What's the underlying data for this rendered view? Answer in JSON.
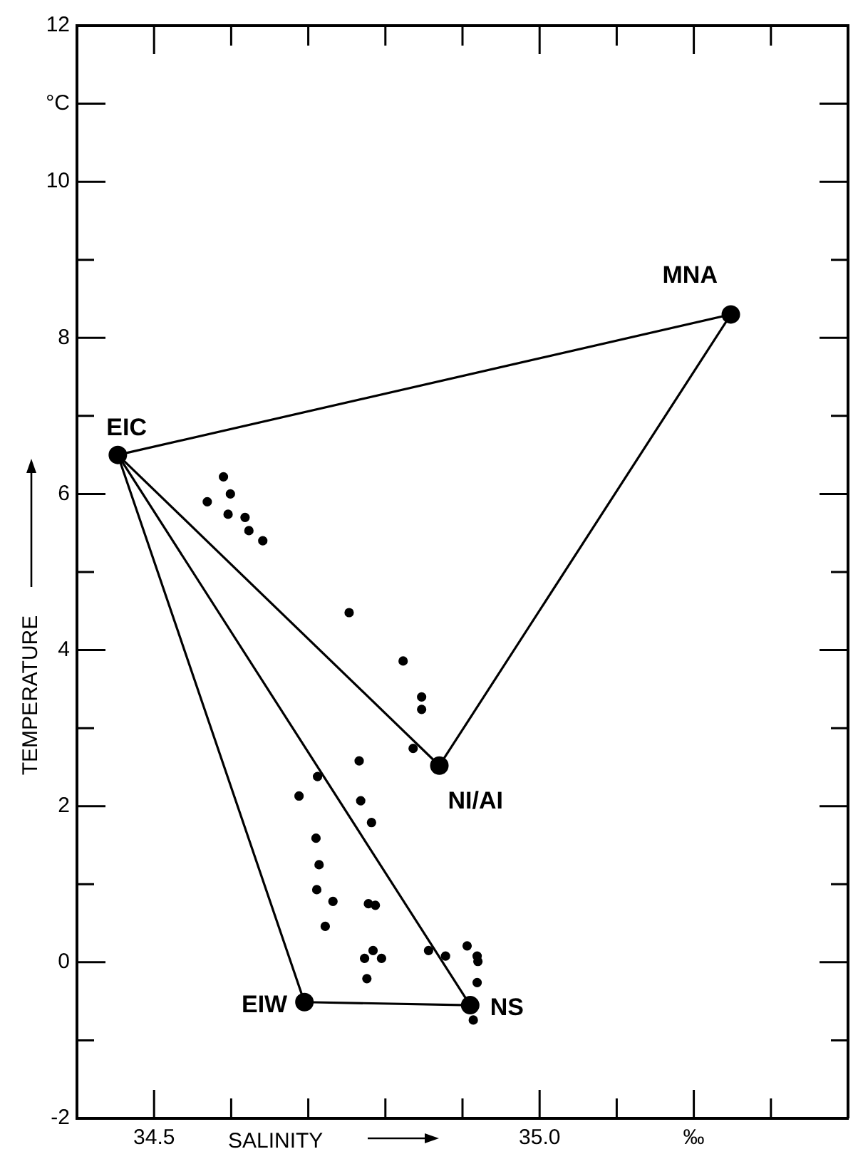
{
  "chart_data": {
    "type": "scatter",
    "xlabel": "SALINITY",
    "ylabel": "TEMPERATURE",
    "xlim": [
      34.4,
      35.4
    ],
    "ylim": [
      -2,
      12
    ],
    "xticks": [
      34.5,
      {
        "value": 34.6,
        "label": null
      },
      {
        "value": 34.7,
        "label": null
      },
      {
        "value": 34.8,
        "label": null
      },
      {
        "value": 34.9,
        "label": null
      },
      {
        "value": 35,
        "label": "35.0"
      },
      {
        "value": 35.1,
        "label": null
      },
      {
        "value": 35.2,
        "label": "‰"
      },
      {
        "value": 35.3,
        "label": null
      }
    ],
    "yticks": [
      -2,
      {
        "value": -1,
        "label": null
      },
      0,
      {
        "value": 1,
        "label": null
      },
      2,
      {
        "value": 3,
        "label": null
      },
      4,
      {
        "value": 5,
        "label": null
      },
      6,
      {
        "value": 7,
        "label": null
      },
      8,
      {
        "value": 9,
        "label": null
      },
      10,
      {
        "value": 11,
        "label": "°C"
      },
      12
    ],
    "marker": "circle",
    "series": [
      {
        "type": "line",
        "marker": "none",
        "color": "#000000",
        "x": [
          34.453,
          35.248
        ],
        "values": [
          6.5,
          8.3
        ]
      },
      {
        "type": "line",
        "marker": "none",
        "color": "#000000",
        "x": [
          34.87,
          35.248
        ],
        "values": [
          2.52,
          8.3
        ]
      },
      {
        "type": "line",
        "marker": "none",
        "color": "#000000",
        "x": [
          34.453,
          34.87
        ],
        "values": [
          6.5,
          2.52
        ]
      },
      {
        "type": "line",
        "marker": "none",
        "color": "#000000",
        "x": [
          34.453,
          34.695
        ],
        "values": [
          6.5,
          -0.51
        ]
      },
      {
        "type": "line",
        "marker": "none",
        "color": "#000000",
        "x": [
          34.453,
          34.91
        ],
        "values": [
          6.5,
          -0.55
        ]
      },
      {
        "type": "line",
        "marker": "none",
        "color": "#000000",
        "x": [
          34.695,
          34.91
        ],
        "values": [
          -0.51,
          -0.55
        ]
      },
      {
        "color": "#000000",
        "x": [
          34.453,
          35.248,
          34.87,
          34.695,
          34.91
        ],
        "values": [
          6.5,
          8.3,
          2.52,
          -0.51,
          -0.55
        ]
      },
      {
        "color": "#000000",
        "x": [
          34.59,
          34.569,
          34.599,
          34.596,
          34.618,
          34.623,
          34.641,
          34.753,
          34.823,
          34.847,
          34.847,
          34.766,
          34.836,
          34.712,
          34.688,
          34.768,
          34.782,
          34.71,
          34.714,
          34.711,
          34.732,
          34.778,
          34.787,
          34.722,
          34.784,
          34.773,
          34.795,
          34.776,
          34.856,
          34.878,
          34.906,
          34.919,
          34.92,
          34.919,
          34.914
        ],
        "values": [
          6.22,
          5.9,
          6.0,
          5.74,
          5.7,
          5.53,
          5.4,
          4.48,
          3.86,
          3.4,
          3.24,
          2.58,
          2.74,
          2.38,
          2.13,
          2.07,
          1.79,
          1.59,
          1.25,
          0.93,
          0.78,
          0.75,
          0.73,
          0.46,
          0.15,
          0.05,
          0.05,
          -0.21,
          0.15,
          0.08,
          0.21,
          0.08,
          0.01,
          -0.26,
          -0.74
        ]
      }
    ],
    "annotations": [
      {
        "text": "EIC",
        "x": 34.453,
        "y": 6.5
      },
      {
        "text": "MNA",
        "x": 35.248,
        "y": 8.3
      },
      {
        "text": "NI/AI",
        "x": 34.87,
        "y": 2.52
      },
      {
        "text": "EIW",
        "x": 34.695,
        "y": -0.51
      },
      {
        "text": "NS",
        "x": 34.91,
        "y": -0.55
      }
    ]
  }
}
